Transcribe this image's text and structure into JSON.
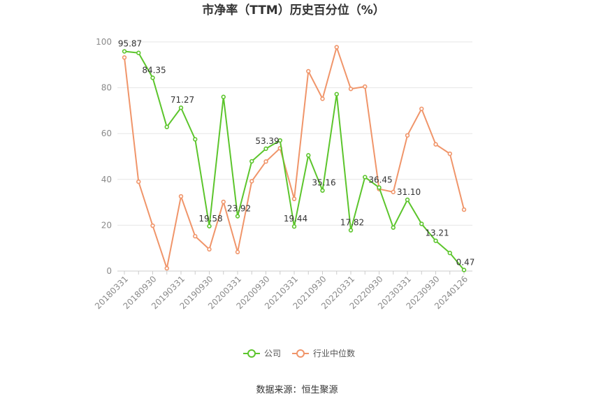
{
  "chart_data": {
    "type": "line",
    "title": "市净率（TTM）历史百分位（%）",
    "source": "数据来源：恒生聚源",
    "ylim": [
      0,
      100
    ],
    "yticks": [
      0,
      20,
      40,
      60,
      80,
      100
    ],
    "x_tick_labels": [
      "20180331",
      "20180930",
      "20190331",
      "20190930",
      "20200331",
      "20200930",
      "20210331",
      "20210930",
      "20220331",
      "20220930",
      "20230331",
      "20230930",
      "20240126"
    ],
    "grid": true,
    "legend_position": "bottom",
    "series": [
      {
        "name": "公司",
        "color": "#5cc52c",
        "values": [
          95.87,
          95.2,
          84.35,
          62.9,
          71.27,
          57.5,
          19.58,
          76.0,
          23.92,
          47.9,
          53.39,
          57.0,
          19.44,
          50.5,
          35.16,
          77.2,
          17.82,
          41.0,
          36.45,
          19.0,
          31.1,
          20.6,
          13.21,
          7.9,
          0.47
        ],
        "labels": {
          "0": "95.87",
          "2": "84.35",
          "4": "71.27",
          "6": "19.58",
          "8": "23.92",
          "10": "53.39",
          "12": "19.44",
          "14": "35.16",
          "16": "17.82",
          "18": "36.45",
          "20": "31.10",
          "22": "13.21",
          "24": "0.47"
        }
      },
      {
        "name": "行业中位数",
        "color": "#f0956a",
        "values": [
          93.2,
          39.0,
          19.8,
          1.2,
          32.6,
          15.2,
          9.5,
          30.2,
          8.3,
          39.2,
          47.8,
          53.6,
          31.5,
          87.2,
          75.2,
          97.7,
          79.5,
          80.5,
          35.8,
          34.5,
          59.2,
          70.8,
          55.3,
          51.2,
          26.8
        ]
      }
    ]
  }
}
